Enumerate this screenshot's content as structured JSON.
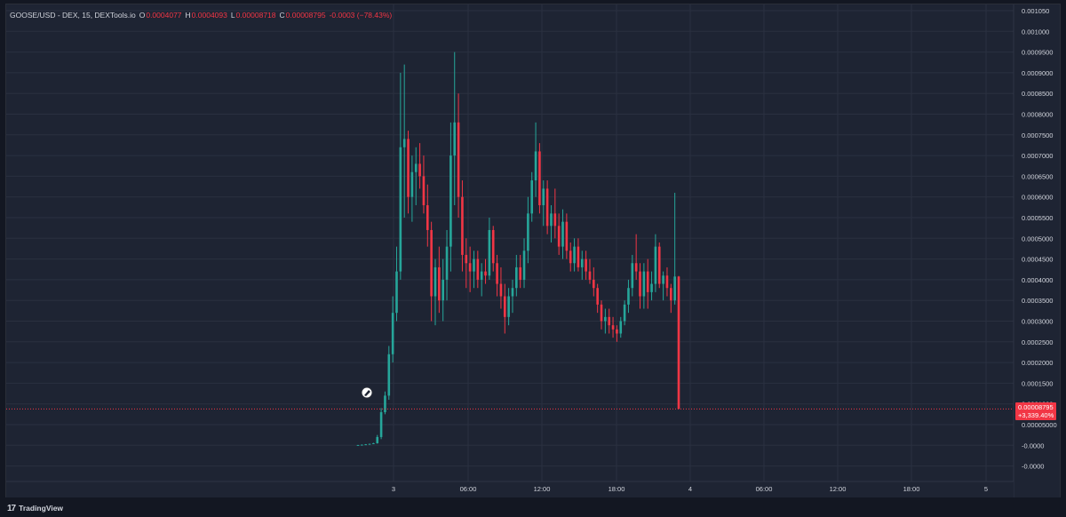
{
  "legend": {
    "symbol": "GOOSE/USD - DEX, 15, DEXTools.io",
    "open_label": "O",
    "open": "0.0004077",
    "high_label": "H",
    "high": "0.0004093",
    "low_label": "L",
    "low": "0.00008718",
    "close_label": "C",
    "close": "0.00008795",
    "change": "-0.0003 (−78.43%)"
  },
  "price_badge": {
    "price": "0.00008795",
    "change": "+3,339.40%",
    "color": "#f23645"
  },
  "brand": {
    "logo": "17",
    "name": "TradingView"
  },
  "colors": {
    "up": "#26a69a",
    "down": "#f23645",
    "grid": "#2a3040",
    "background": "#1e2433",
    "text": "#d1d4dc"
  },
  "chart_data": {
    "type": "candlestick",
    "title": "",
    "xlabel": "",
    "ylabel": "",
    "y_ticks": [
      "0.001050",
      "0.001000",
      "0.0009500",
      "0.0009000",
      "0.0008500",
      "0.0008000",
      "0.0007500",
      "0.0007000",
      "0.0006500",
      "0.0006000",
      "0.0005500",
      "0.0005000",
      "0.0004500",
      "0.0004000",
      "0.0003500",
      "0.0003000",
      "0.0002500",
      "0.0002000",
      "0.0001500",
      "0.0001000",
      "0.00005000",
      "-0.0000",
      "-0.0000"
    ],
    "x_ticks": [
      "3",
      "06:00",
      "12:00",
      "18:00",
      "4",
      "06:00",
      "12:00",
      "18:00",
      "5"
    ],
    "ylim": [
      -0.00012,
      0.00106
    ],
    "interval": "15m",
    "grid": true,
    "last_price": 8.795e-05,
    "ohlc": [
      [
        5e-07,
        1e-06,
        2e-07,
        8e-07
      ],
      [
        8e-07,
        2e-06,
        5e-07,
        1.5e-06
      ],
      [
        1.5e-06,
        3e-06,
        1e-06,
        2.5e-06
      ],
      [
        2.5e-06,
        4e-06,
        2e-06,
        3.5e-06
      ],
      [
        3.5e-06,
        6e-06,
        3e-06,
        5e-06
      ],
      [
        5e-06,
        2.5e-05,
        4e-06,
        2e-05
      ],
      [
        2e-05,
        9e-05,
        1.5e-05,
        8e-05
      ],
      [
        8e-05,
        0.00013,
        7.5e-05,
        0.00012
      ],
      [
        0.00012,
        0.00024,
        0.00011,
        0.00022
      ],
      [
        0.00022,
        0.00036,
        0.0002,
        0.00032
      ],
      [
        0.00032,
        0.00048,
        0.0003,
        0.00042
      ],
      [
        0.00042,
        0.0009,
        0.0004,
        0.00072
      ],
      [
        0.00072,
        0.00092,
        0.00055,
        0.00074
      ],
      [
        0.00074,
        0.00076,
        0.00056,
        0.0006
      ],
      [
        0.0006,
        0.0007,
        0.00054,
        0.00066
      ],
      [
        0.00066,
        0.00072,
        0.00058,
        0.00068
      ],
      [
        0.00068,
        0.00073,
        0.00062,
        0.00065
      ],
      [
        0.00065,
        0.0007,
        0.00056,
        0.00058
      ],
      [
        0.00058,
        0.00063,
        0.00048,
        0.00052
      ],
      [
        0.00052,
        0.00054,
        0.0003,
        0.00036
      ],
      [
        0.00036,
        0.00045,
        0.00029,
        0.00043
      ],
      [
        0.00043,
        0.00048,
        0.00032,
        0.00035
      ],
      [
        0.00035,
        0.00045,
        0.0003,
        0.0004
      ],
      [
        0.0004,
        0.00052,
        0.00035,
        0.00048
      ],
      [
        0.00048,
        0.00078,
        0.00042,
        0.0007
      ],
      [
        0.0007,
        0.00095,
        0.00058,
        0.00078
      ],
      [
        0.00078,
        0.00085,
        0.00055,
        0.0006
      ],
      [
        0.0006,
        0.00064,
        0.00042,
        0.00046
      ],
      [
        0.00046,
        0.0005,
        0.00038,
        0.00044
      ],
      [
        0.00044,
        0.00048,
        0.00037,
        0.00042
      ],
      [
        0.00042,
        0.00047,
        0.00038,
        0.00045
      ],
      [
        0.00045,
        0.00047,
        0.00038,
        0.0004
      ],
      [
        0.0004,
        0.00044,
        0.00036,
        0.00042
      ],
      [
        0.00042,
        0.00045,
        0.00039,
        0.00041
      ],
      [
        0.00041,
        0.00055,
        0.0004,
        0.00052
      ],
      [
        0.00052,
        0.00053,
        0.00042,
        0.00044
      ],
      [
        0.00044,
        0.00046,
        0.00036,
        0.00039
      ],
      [
        0.00039,
        0.00043,
        0.00033,
        0.00036
      ],
      [
        0.00036,
        0.00039,
        0.00027,
        0.00031
      ],
      [
        0.00031,
        0.00038,
        0.00029,
        0.00036
      ],
      [
        0.00036,
        0.0004,
        0.00032,
        0.00038
      ],
      [
        0.00038,
        0.00046,
        0.00036,
        0.00043
      ],
      [
        0.00043,
        0.00046,
        0.00038,
        0.0004
      ],
      [
        0.0004,
        0.0005,
        0.00038,
        0.00047
      ],
      [
        0.00047,
        0.0006,
        0.00044,
        0.00056
      ],
      [
        0.00056,
        0.00066,
        0.00054,
        0.00064
      ],
      [
        0.00064,
        0.00078,
        0.0006,
        0.00071
      ],
      [
        0.00071,
        0.00073,
        0.00056,
        0.00058
      ],
      [
        0.00058,
        0.00064,
        0.00053,
        0.00062
      ],
      [
        0.00062,
        0.00064,
        0.00051,
        0.00053
      ],
      [
        0.00053,
        0.00058,
        0.00049,
        0.00056
      ],
      [
        0.00056,
        0.00062,
        0.0005,
        0.00053
      ],
      [
        0.00053,
        0.00056,
        0.00046,
        0.00048
      ],
      [
        0.00048,
        0.00057,
        0.00045,
        0.00054
      ],
      [
        0.00054,
        0.00056,
        0.00045,
        0.00047
      ],
      [
        0.00047,
        0.00049,
        0.00042,
        0.00044
      ],
      [
        0.00044,
        0.0005,
        0.00042,
        0.00048
      ],
      [
        0.00048,
        0.0005,
        0.00042,
        0.00043
      ],
      [
        0.00043,
        0.00047,
        0.0004,
        0.00045
      ],
      [
        0.00045,
        0.00047,
        0.0004,
        0.00042
      ],
      [
        0.00042,
        0.00045,
        0.00039,
        0.0004
      ],
      [
        0.0004,
        0.00043,
        0.00036,
        0.00038
      ],
      [
        0.00038,
        0.00039,
        0.00032,
        0.00034
      ],
      [
        0.00034,
        0.00035,
        0.00028,
        0.0003
      ],
      [
        0.0003,
        0.00033,
        0.00027,
        0.00031
      ],
      [
        0.00031,
        0.00033,
        0.00027,
        0.00029
      ],
      [
        0.00029,
        0.00031,
        0.00026,
        0.00028
      ],
      [
        0.00028,
        0.00029,
        0.00025,
        0.00027
      ],
      [
        0.00027,
        0.00031,
        0.00026,
        0.0003
      ],
      [
        0.0003,
        0.00035,
        0.00029,
        0.00034
      ],
      [
        0.00034,
        0.0004,
        0.00032,
        0.00038
      ],
      [
        0.00038,
        0.00046,
        0.00036,
        0.00044
      ],
      [
        0.00044,
        0.00051,
        0.0004,
        0.00042
      ],
      [
        0.00042,
        0.00044,
        0.00033,
        0.00036
      ],
      [
        0.00036,
        0.00044,
        0.00033,
        0.00042
      ],
      [
        0.00042,
        0.00045,
        0.00033,
        0.00037
      ],
      [
        0.00037,
        0.00042,
        0.00035,
        0.00039
      ],
      [
        0.00039,
        0.00051,
        0.00037,
        0.00048
      ],
      [
        0.00048,
        0.00049,
        0.00038,
        0.00039
      ],
      [
        0.00039,
        0.00042,
        0.00035,
        0.00041
      ],
      [
        0.00041,
        0.00043,
        0.00036,
        0.00038
      ],
      [
        0.00038,
        0.00039,
        0.00032,
        0.00035
      ],
      [
        0.00035,
        0.00061,
        0.00034,
        0.0004077
      ],
      [
        0.0004077,
        0.0004093,
        8.718e-05,
        8.795e-05
      ]
    ]
  }
}
